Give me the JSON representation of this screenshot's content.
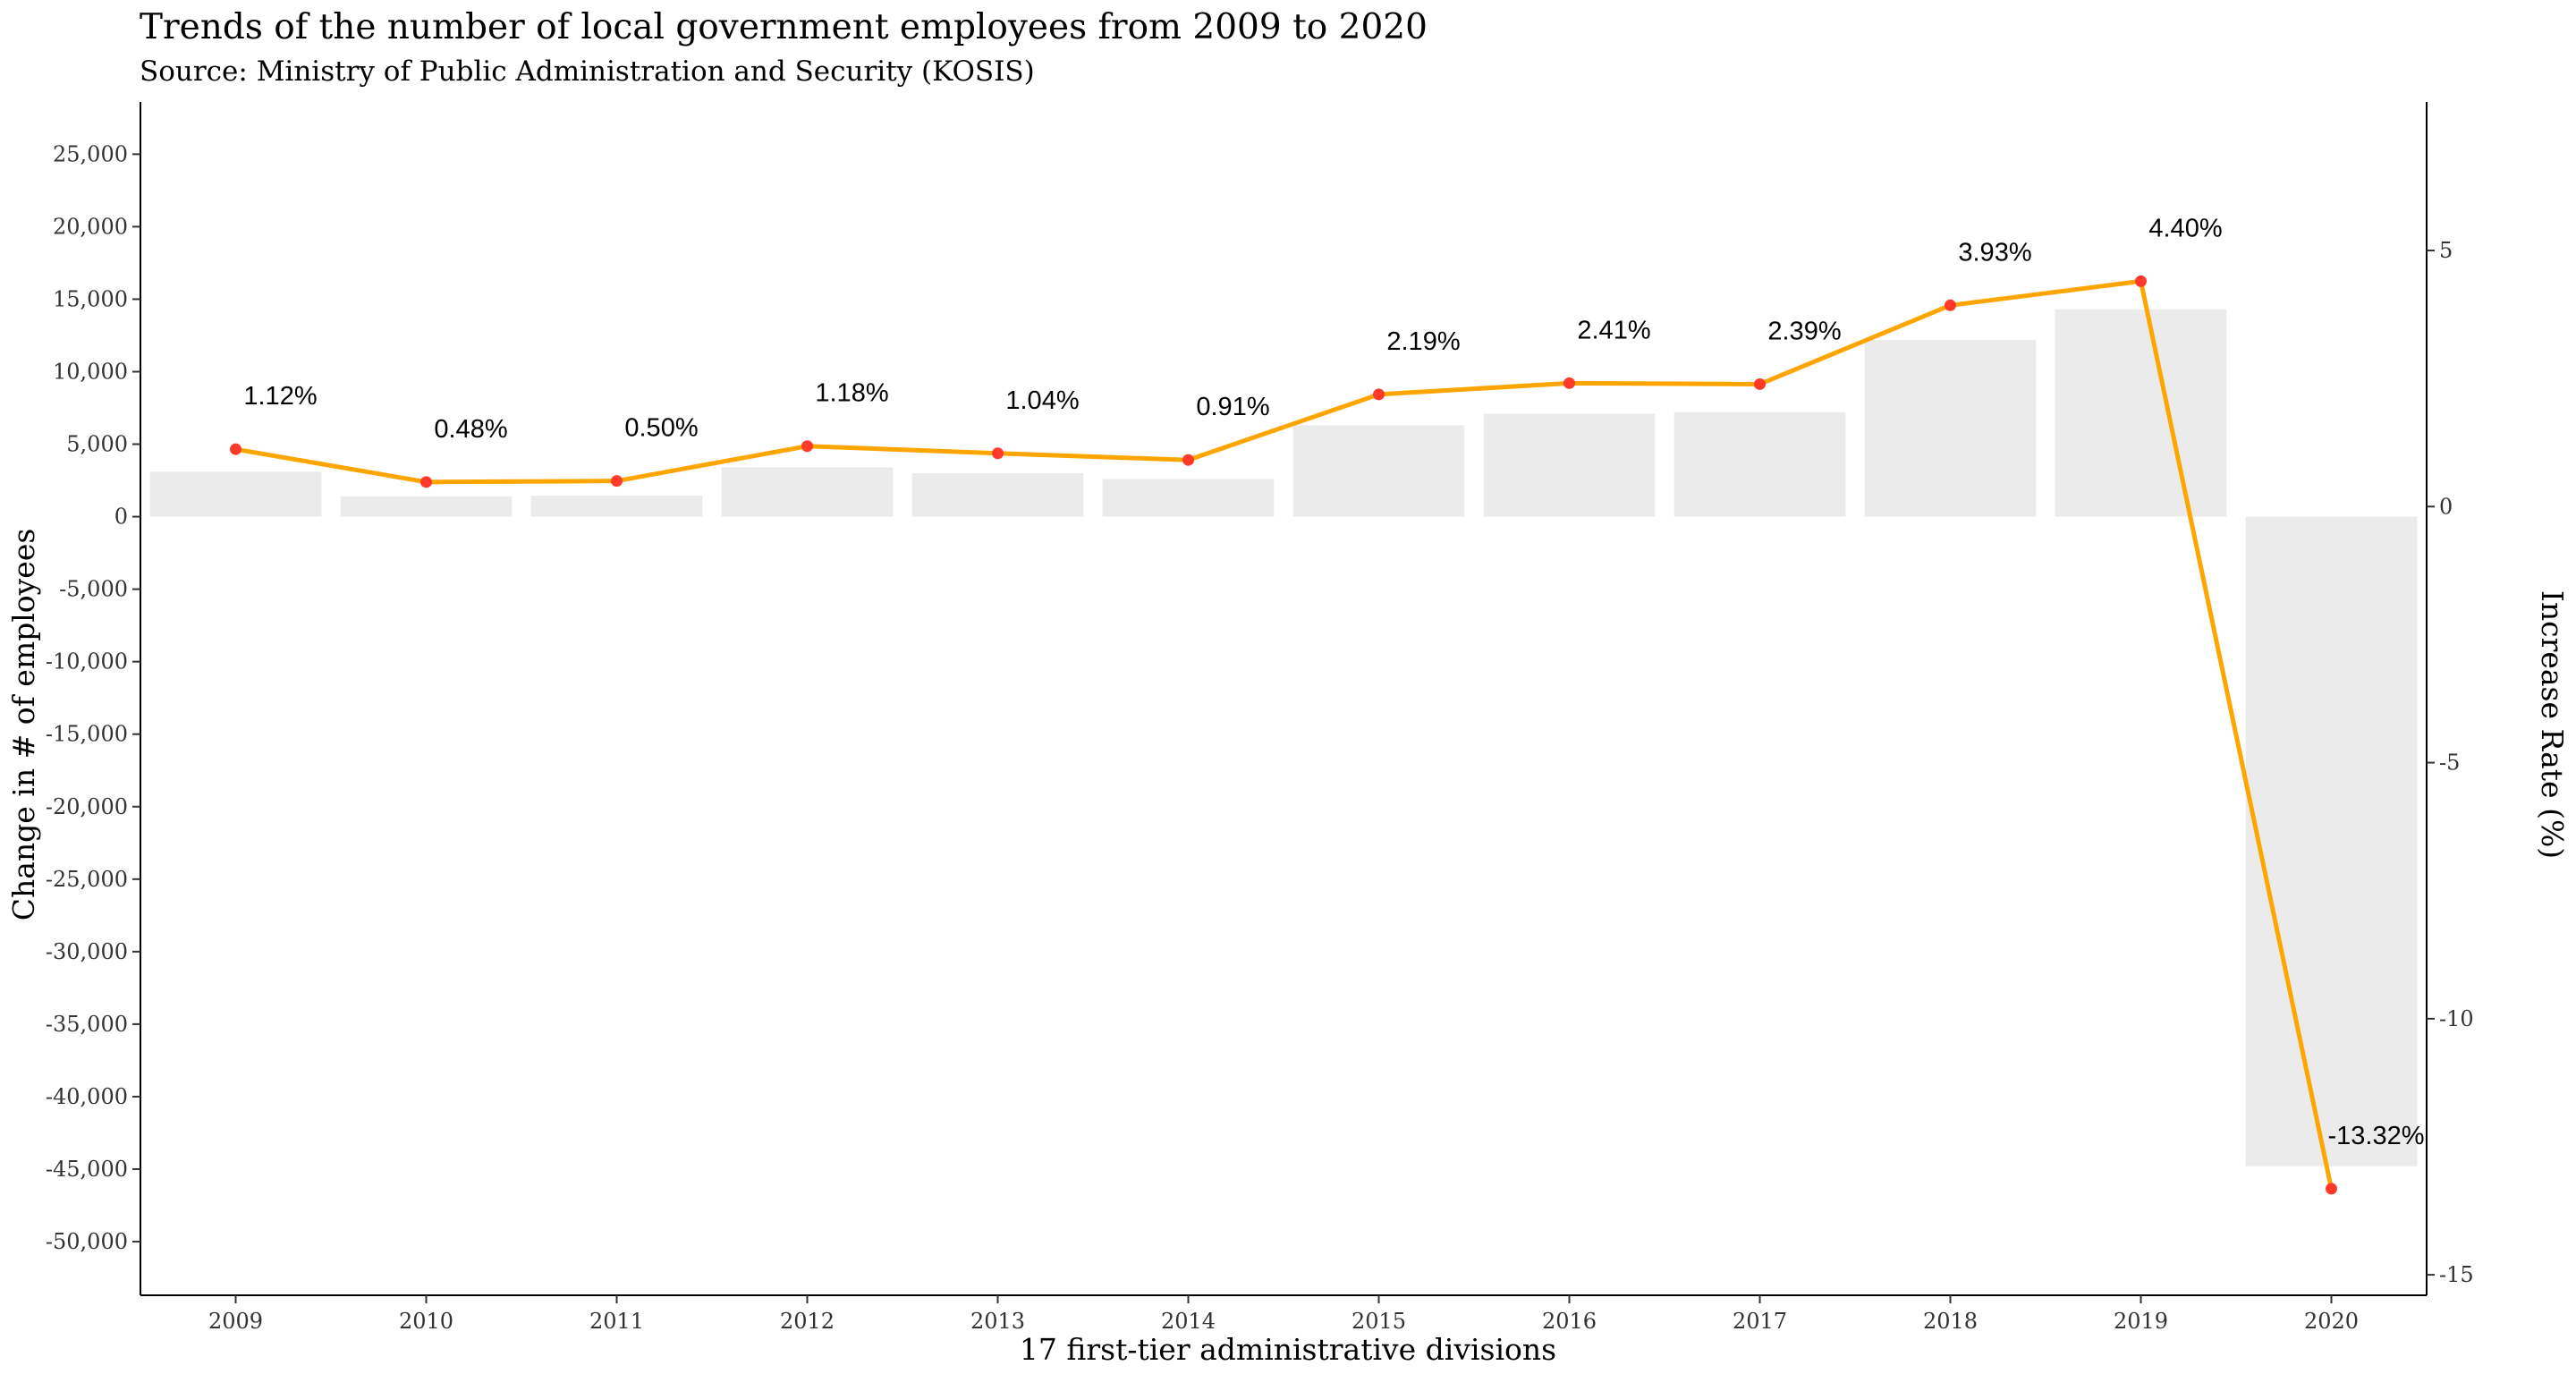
{
  "chart_data": {
    "type": "bar",
    "title": "Trends of the number of local government employees from 2009 to 2020",
    "subtitle": "Source: Ministry of Public Administration and Security (KOSIS)",
    "xlabel": "17 first-tier administrative divisions",
    "ylabel": "Change in # of employees",
    "y2label": "Increase Rate  (%)",
    "categories": [
      "2009",
      "2010",
      "2011",
      "2012",
      "2013",
      "2014",
      "2015",
      "2016",
      "2017",
      "2018",
      "2019",
      "2020"
    ],
    "ylim": [
      -53700,
      28600
    ],
    "y_ticks": [
      25000,
      20000,
      15000,
      10000,
      5000,
      0,
      -5000,
      -10000,
      -15000,
      -20000,
      -25000,
      -30000,
      -35000,
      -40000,
      -45000,
      -50000
    ],
    "y_tick_labels": [
      "25,000",
      "20,000",
      "15,000",
      "10,000",
      "5,000",
      "0",
      "-5,000",
      "-10,000",
      "-15,000",
      "-20,000",
      "-25,000",
      "-30,000",
      "-35,000",
      "-40,000",
      "-45,000",
      "-50,000"
    ],
    "y2lim": [
      -15.4,
      7.9
    ],
    "y2_ticks": [
      5,
      0,
      -5,
      -10,
      -15
    ],
    "y2_tick_labels": [
      "5",
      "0",
      "-5",
      "-10",
      "-15"
    ],
    "series": [
      {
        "type": "bar",
        "axis": "left",
        "values": [
          3100,
          1400,
          1450,
          3400,
          3000,
          2600,
          6300,
          7100,
          7200,
          12200,
          14300,
          -44800
        ]
      },
      {
        "type": "line",
        "axis": "right",
        "values": [
          1.12,
          0.48,
          0.5,
          1.18,
          1.04,
          0.91,
          2.19,
          2.41,
          2.39,
          3.93,
          4.4,
          -13.32
        ],
        "labels": [
          "1.12%",
          "0.48%",
          "0.50%",
          "1.18%",
          "1.04%",
          "0.91%",
          "2.19%",
          "2.41%",
          "2.39%",
          "3.93%",
          "4.40%",
          "-13.32%"
        ]
      }
    ],
    "colors": {
      "bar": "#ebebeb",
      "line": "#ffa500",
      "point": "#ff3a2a",
      "axis": "#000000"
    },
    "grid": false,
    "legend": "none"
  }
}
